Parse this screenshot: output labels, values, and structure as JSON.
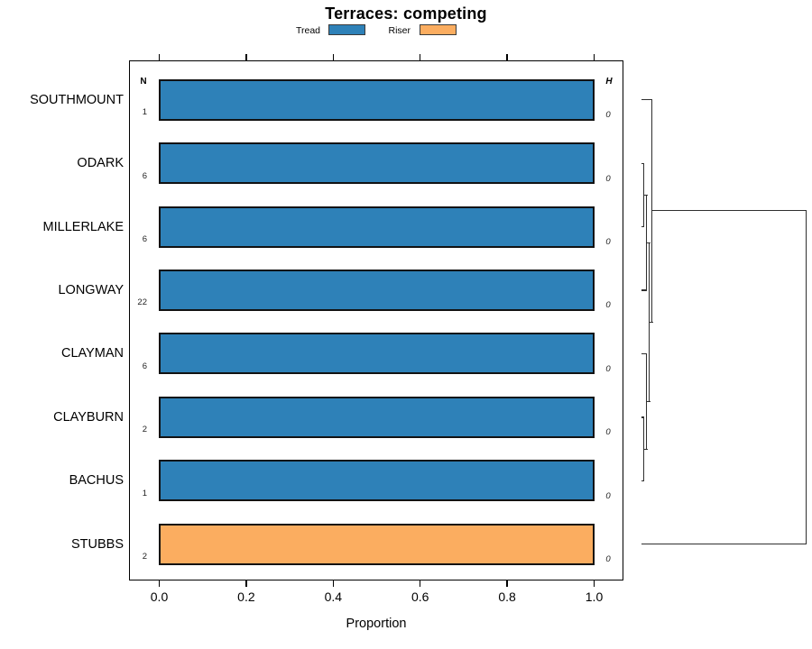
{
  "title": "Terraces: competing",
  "legend": {
    "items": [
      {
        "label": "Tread",
        "color": "#2E81B8"
      },
      {
        "label": "Riser",
        "color": "#FBAD60"
      }
    ]
  },
  "columns": {
    "n_header": "N",
    "h_header": "H"
  },
  "x_axis": {
    "label": "Proportion",
    "tick_labels": [
      "0.0",
      "0.2",
      "0.4",
      "0.6",
      "0.8",
      "1.0"
    ],
    "tick_values": [
      0,
      0.2,
      0.4,
      0.6,
      0.8,
      1
    ]
  },
  "chart_data": {
    "type": "bar",
    "orientation": "horizontal-stacked-proportion",
    "title": "Terraces: competing",
    "xlabel": "Proportion",
    "ylabel": "",
    "xlim": [
      0,
      1
    ],
    "grid": false,
    "legend_position": "top",
    "categories": [
      "SOUTHMOUNT",
      "ODARK",
      "MILLERLAKE",
      "LONGWAY",
      "CLAYMAN",
      "CLAYBURN",
      "BACHUS",
      "STUBBS"
    ],
    "series": [
      {
        "name": "Tread",
        "color": "#2E81B8",
        "values": [
          1,
          1,
          1,
          1,
          1,
          1,
          1,
          0
        ]
      },
      {
        "name": "Riser",
        "color": "#FBAD60",
        "values": [
          0,
          0,
          0,
          0,
          0,
          0,
          0,
          1
        ]
      }
    ],
    "N_column": {
      "header": "N",
      "values": [
        "1",
        "6",
        "6",
        "22",
        "6",
        "2",
        "1",
        "2"
      ]
    },
    "H_column": {
      "header": "H",
      "values": [
        "0",
        "0",
        "0",
        "0",
        "0",
        "0",
        "0",
        "0"
      ]
    },
    "bar_border_color": "#121212",
    "dendrogram": {
      "side": "right",
      "merge_order": [
        [
          "ODARK",
          "MILLERLAKE"
        ],
        [
          "{ODARK,MILLERLAKE}",
          "LONGWAY"
        ],
        [
          "CLAYBURN",
          "BACHUS"
        ],
        [
          "CLAYMAN",
          "{CLAYBURN,BACHUS}"
        ],
        [
          "{ODARK,MILLERLAKE,LONGWAY}",
          "{CLAYMAN,CLAYBURN,BACHUS}"
        ],
        [
          "SOUTHMOUNT",
          "{previous}"
        ],
        [
          "{all Tread rows}",
          "STUBBS"
        ]
      ],
      "heights": [
        0,
        0,
        0,
        0,
        0,
        0,
        "root (large)"
      ],
      "h_segments": [
        [
          110.7,
          711.0,
          723.0
        ],
        [
          181.3,
          710.5,
          714.0
        ],
        [
          251.7,
          710.5,
          714.0
        ],
        [
          322.0,
          710.5,
          717.0
        ],
        [
          392.3,
          710.5,
          717.0
        ],
        [
          463.0,
          710.5,
          714.0
        ],
        [
          533.3,
          710.5,
          714.0
        ],
        [
          603.7,
          710.5,
          894.0
        ],
        [
          216.5,
          713.5,
          717.5
        ],
        [
          269.2,
          716.5,
          720.5
        ],
        [
          498.2,
          713.5,
          717.5
        ],
        [
          445.2,
          716.5,
          720.5
        ],
        [
          357.2,
          719.5,
          723.5
        ],
        [
          233.5,
          722.5,
          894.0
        ]
      ],
      "v_segments": [
        [
          713.5,
          181.3,
          252.2
        ],
        [
          716.5,
          216.5,
          322.5
        ],
        [
          713.5,
          463.0,
          533.8
        ],
        [
          716.5,
          392.3,
          498.7
        ],
        [
          719.5,
          269.2,
          445.7
        ],
        [
          722.5,
          110.7,
          357.7
        ],
        [
          893.5,
          233.5,
          604.2
        ]
      ]
    }
  }
}
